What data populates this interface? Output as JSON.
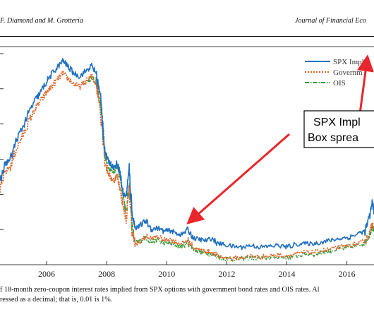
{
  "header": {
    "authors": "F. Diamond and M. Grotteria",
    "journal": "Journal of Financial Eco"
  },
  "callout": {
    "line1": "SPX Impl",
    "line2": "Box sprea"
  },
  "caption": {
    "line1": "f 18-month zero-coupon interest rates implied from SPX options with government bond rates and OIS rates. Al",
    "line2": "ressed as a decimal; that is, 0.01 is 1%."
  },
  "colors": {
    "spx": "#1f6fc0",
    "gov": "#e0662a",
    "ois": "#3c9a3c",
    "arrow": "#e8262b"
  },
  "chart_data": {
    "type": "line",
    "x_ticks": [
      2006,
      2008,
      2010,
      2012,
      2014,
      2016
    ],
    "xlim": [
      2004.45,
      2016.9
    ],
    "ylim": [
      0,
      0.062
    ],
    "grid": false,
    "legend_position": "top-right",
    "series": [
      {
        "name": "SPX Implie",
        "key": "spx",
        "x": [
          2004.45,
          2004.6,
          2004.8,
          2005.0,
          2005.2,
          2005.4,
          2005.6,
          2005.8,
          2006.0,
          2006.2,
          2006.4,
          2006.55,
          2006.7,
          2006.9,
          2007.1,
          2007.3,
          2007.5,
          2007.65,
          2007.8,
          2007.95,
          2008.05,
          2008.15,
          2008.25,
          2008.35,
          2008.45,
          2008.55,
          2008.65,
          2008.75,
          2008.85,
          2008.95,
          2009.1,
          2009.3,
          2009.5,
          2009.7,
          2009.9,
          2010.1,
          2010.3,
          2010.5,
          2010.7,
          2010.9,
          2011.1,
          2011.3,
          2011.5,
          2011.7,
          2011.9,
          2012.2,
          2012.5,
          2012.8,
          2013.1,
          2013.4,
          2013.7,
          2014.0,
          2014.3,
          2014.6,
          2014.9,
          2015.2,
          2015.5,
          2015.8,
          2016.1,
          2016.4,
          2016.6,
          2016.75,
          2016.85,
          2016.9
        ],
        "y": [
          0.023,
          0.0285,
          0.03,
          0.0355,
          0.039,
          0.043,
          0.0465,
          0.049,
          0.052,
          0.0545,
          0.0565,
          0.058,
          0.0565,
          0.0545,
          0.0535,
          0.055,
          0.0565,
          0.0545,
          0.047,
          0.032,
          0.0295,
          0.0285,
          0.0275,
          0.029,
          0.026,
          0.02,
          0.0195,
          0.027,
          0.0145,
          0.0105,
          0.011,
          0.0125,
          0.01,
          0.0105,
          0.0095,
          0.0098,
          0.009,
          0.0085,
          0.01,
          0.0075,
          0.0072,
          0.0068,
          0.0075,
          0.006,
          0.0058,
          0.0052,
          0.005,
          0.0055,
          0.005,
          0.0052,
          0.0055,
          0.005,
          0.0058,
          0.006,
          0.006,
          0.0065,
          0.007,
          0.0075,
          0.0078,
          0.009,
          0.0095,
          0.0135,
          0.018,
          0.0145
        ]
      },
      {
        "name": "Governm",
        "key": "gov",
        "x": [
          2004.45,
          2004.6,
          2004.8,
          2005.0,
          2005.2,
          2005.4,
          2005.6,
          2005.8,
          2006.0,
          2006.2,
          2006.4,
          2006.55,
          2006.7,
          2006.9,
          2007.1,
          2007.3,
          2007.5,
          2007.65,
          2007.8,
          2007.95,
          2008.05,
          2008.15,
          2008.25,
          2008.35,
          2008.45,
          2008.55,
          2008.65,
          2008.75,
          2008.85,
          2008.95,
          2009.1,
          2009.3,
          2009.5,
          2009.7,
          2009.9,
          2010.1,
          2010.3,
          2010.5,
          2010.7,
          2010.9,
          2011.1,
          2011.3,
          2011.5,
          2011.7,
          2011.9,
          2012.2,
          2012.5,
          2012.8,
          2013.1,
          2013.4,
          2013.7,
          2014.0,
          2014.3,
          2014.6,
          2014.9,
          2015.2,
          2015.5,
          2015.8,
          2016.1,
          2016.4,
          2016.6,
          2016.75,
          2016.85,
          2016.9
        ],
        "y": [
          0.021,
          0.026,
          0.028,
          0.033,
          0.0365,
          0.0405,
          0.044,
          0.0465,
          0.049,
          0.051,
          0.053,
          0.0545,
          0.053,
          0.0515,
          0.0505,
          0.052,
          0.0535,
          0.0515,
          0.044,
          0.029,
          0.026,
          0.0245,
          0.024,
          0.0255,
          0.0215,
          0.0165,
          0.013,
          0.0215,
          0.0095,
          0.0055,
          0.0065,
          0.008,
          0.0075,
          0.008,
          0.007,
          0.0072,
          0.0065,
          0.006,
          0.007,
          0.0048,
          0.0042,
          0.0038,
          0.0035,
          0.0025,
          0.002,
          0.0018,
          0.002,
          0.0025,
          0.0022,
          0.0025,
          0.0028,
          0.0025,
          0.003,
          0.0035,
          0.0035,
          0.004,
          0.0045,
          0.005,
          0.0055,
          0.006,
          0.0068,
          0.009,
          0.012,
          0.01
        ]
      },
      {
        "name": "OIS",
        "key": "ois",
        "x": [
          2007.4,
          2007.5,
          2007.65,
          2007.8,
          2007.95,
          2008.05,
          2008.15,
          2008.25,
          2008.35,
          2008.45,
          2008.55,
          2008.65,
          2008.75,
          2008.85,
          2008.95,
          2009.1,
          2009.3,
          2009.5,
          2009.7,
          2009.9,
          2010.1,
          2010.3,
          2010.5,
          2010.7,
          2010.9,
          2011.1,
          2011.3,
          2011.5,
          2011.7,
          2011.9,
          2012.2,
          2012.5,
          2012.8,
          2013.1,
          2013.4,
          2013.7,
          2014.0,
          2014.3,
          2014.6,
          2014.9,
          2015.2,
          2015.5,
          2015.8,
          2016.1,
          2016.4,
          2016.6,
          2016.75,
          2016.85,
          2016.9
        ],
        "y": [
          0.0525,
          0.053,
          0.052,
          0.045,
          0.031,
          0.0275,
          0.027,
          0.0265,
          0.028,
          0.0245,
          0.02,
          0.0145,
          0.023,
          0.011,
          0.006,
          0.0068,
          0.0075,
          0.0065,
          0.007,
          0.006,
          0.0062,
          0.0055,
          0.0052,
          0.0062,
          0.0045,
          0.0038,
          0.0032,
          0.003,
          0.0022,
          0.0018,
          0.0015,
          0.0018,
          0.002,
          0.0018,
          0.002,
          0.0022,
          0.002,
          0.0025,
          0.003,
          0.003,
          0.0035,
          0.004,
          0.0045,
          0.005,
          0.0055,
          0.0062,
          0.0085,
          0.011,
          0.0095
        ]
      }
    ]
  }
}
